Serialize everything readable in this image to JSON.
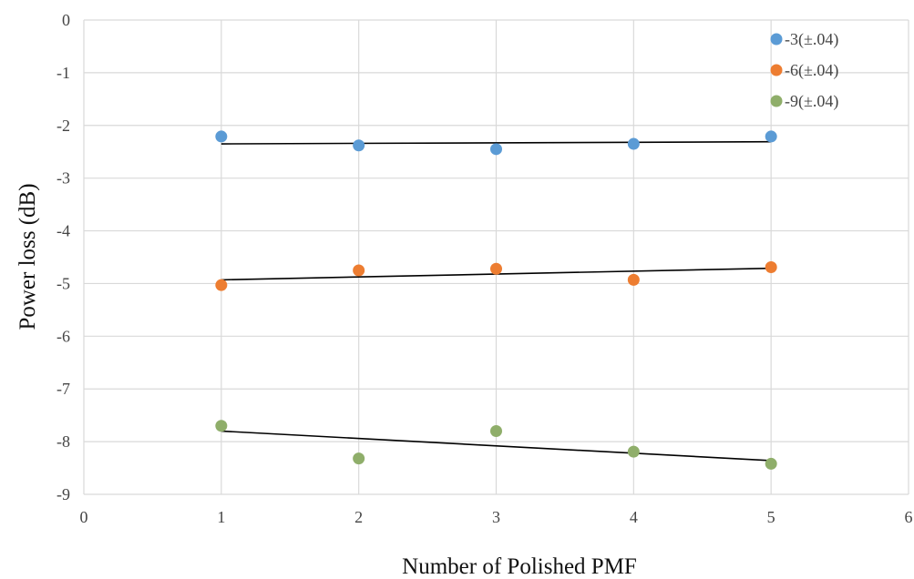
{
  "chart_data": {
    "type": "scatter",
    "xlabel": "Number of Polished PMF",
    "ylabel": "Power loss (dB)",
    "xlim": [
      0,
      6
    ],
    "ylim": [
      -9,
      0
    ],
    "x_ticks": [
      "0",
      "1",
      "2",
      "3",
      "4",
      "5",
      "6"
    ],
    "y_ticks": [
      "0",
      "-1",
      "-2",
      "-3",
      "-4",
      "-5",
      "-6",
      "-7",
      "-8",
      "-9"
    ],
    "grid": true,
    "legend_position": "top-right",
    "x": [
      1,
      2,
      3,
      4,
      5
    ],
    "series": [
      {
        "name": "-3(±.04)",
        "color": "#5b9bd5",
        "values": [
          -2.21,
          -2.38,
          -2.45,
          -2.35,
          -2.21
        ],
        "trendline": [
          -2.35,
          -2.31
        ]
      },
      {
        "name": "-6(±.04)",
        "color": "#ed7d31",
        "values": [
          -5.03,
          -4.75,
          -4.72,
          -4.93,
          -4.69
        ],
        "trendline": [
          -4.93,
          -4.71
        ]
      },
      {
        "name": "-9(±.04)",
        "color": "#8fae6a",
        "values": [
          -7.7,
          -8.32,
          -7.8,
          -8.19,
          -8.42
        ],
        "trendline": [
          -7.8,
          -8.36
        ]
      }
    ],
    "trendline_color": "#000000"
  }
}
